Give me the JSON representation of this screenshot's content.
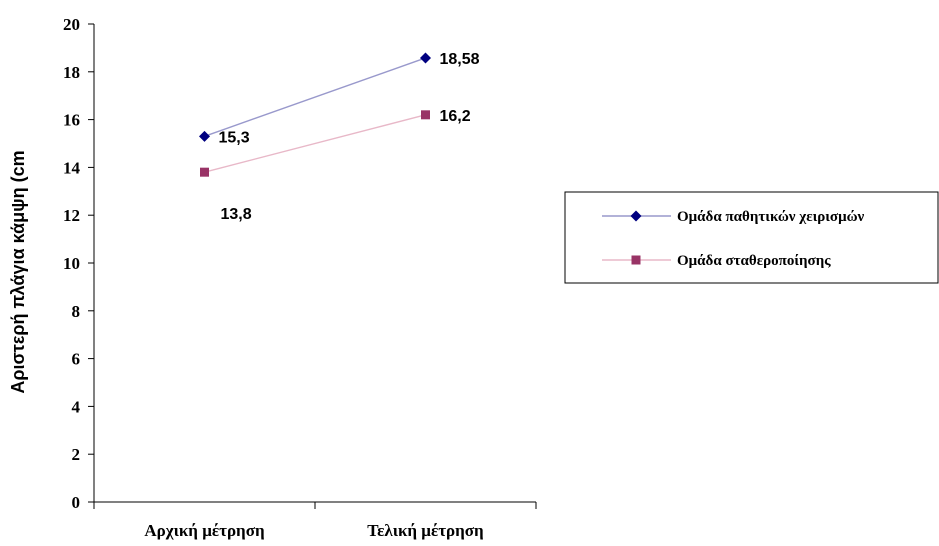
{
  "chart_data": {
    "type": "line",
    "categories": [
      "Αρχική μέτρηση",
      "Τελική μέτρηση"
    ],
    "ylabel": "Αριστερή πλάγια κάμψη (cm",
    "ylim": [
      0,
      20
    ],
    "ytick_step": 2,
    "yticks": [
      "0",
      "2",
      "4",
      "6",
      "8",
      "10",
      "12",
      "14",
      "16",
      "18",
      "20"
    ],
    "grid": false,
    "legend": "right",
    "series": [
      {
        "name": "Ομάδα παθητικών χειρισμών",
        "values": [
          15.3,
          18.58
        ],
        "labels": [
          "15,3",
          "18,58"
        ],
        "color": "#000080",
        "line_color": "#9999cc",
        "marker": "diamond"
      },
      {
        "name": "Ομάδα σταθεροποίησης",
        "values": [
          13.8,
          16.2
        ],
        "labels": [
          "13,8",
          "16,2"
        ],
        "color": "#993366",
        "line_color": "#e8b8c8",
        "marker": "square"
      }
    ]
  }
}
